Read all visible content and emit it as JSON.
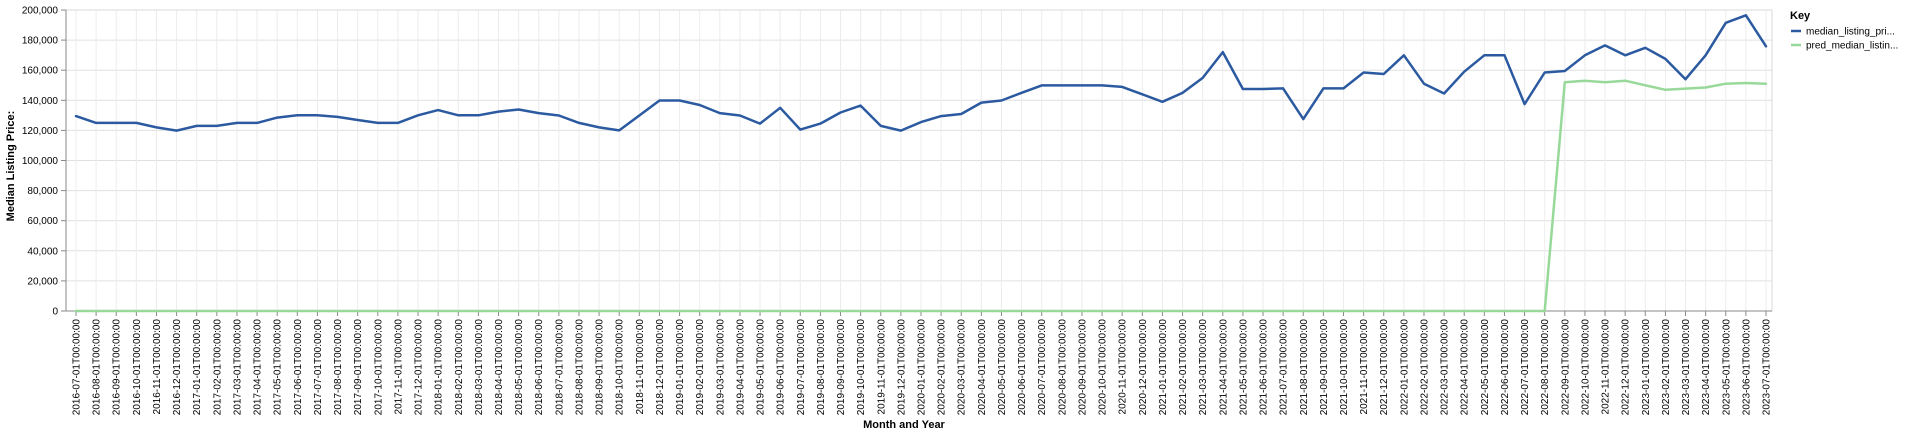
{
  "chart_data": {
    "type": "line",
    "xlabel": "Month and Year",
    "ylabel": "Median Listing Price:",
    "ylim": [
      0,
      200000
    ],
    "yticks": [
      "0",
      "20,000",
      "40,000",
      "60,000",
      "80,000",
      "100,000",
      "120,000",
      "140,000",
      "160,000",
      "180,000",
      "200,000"
    ],
    "grid": true,
    "legend": {
      "title": "Key",
      "placement": "right"
    },
    "x": [
      "2016-07-01T00:00:00",
      "2016-08-01T00:00:00",
      "2016-09-01T00:00:00",
      "2016-10-01T00:00:00",
      "2016-11-01T00:00:00",
      "2016-12-01T00:00:00",
      "2017-01-01T00:00:00",
      "2017-02-01T00:00:00",
      "2017-03-01T00:00:00",
      "2017-04-01T00:00:00",
      "2017-05-01T00:00:00",
      "2017-06-01T00:00:00",
      "2017-07-01T00:00:00",
      "2017-08-01T00:00:00",
      "2017-09-01T00:00:00",
      "2017-10-01T00:00:00",
      "2017-11-01T00:00:00",
      "2017-12-01T00:00:00",
      "2018-01-01T00:00:00",
      "2018-02-01T00:00:00",
      "2018-03-01T00:00:00",
      "2018-04-01T00:00:00",
      "2018-05-01T00:00:00",
      "2018-06-01T00:00:00",
      "2018-07-01T00:00:00",
      "2018-08-01T00:00:00",
      "2018-09-01T00:00:00",
      "2018-10-01T00:00:00",
      "2018-11-01T00:00:00",
      "2018-12-01T00:00:00",
      "2019-01-01T00:00:00",
      "2019-02-01T00:00:00",
      "2019-03-01T00:00:00",
      "2019-04-01T00:00:00",
      "2019-05-01T00:00:00",
      "2019-06-01T00:00:00",
      "2019-07-01T00:00:00",
      "2019-08-01T00:00:00",
      "2019-09-01T00:00:00",
      "2019-10-01T00:00:00",
      "2019-11-01T00:00:00",
      "2019-12-01T00:00:00",
      "2020-01-01T00:00:00",
      "2020-02-01T00:00:00",
      "2020-03-01T00:00:00",
      "2020-04-01T00:00:00",
      "2020-05-01T00:00:00",
      "2020-06-01T00:00:00",
      "2020-07-01T00:00:00",
      "2020-08-01T00:00:00",
      "2020-09-01T00:00:00",
      "2020-10-01T00:00:00",
      "2020-11-01T00:00:00",
      "2020-12-01T00:00:00",
      "2021-01-01T00:00:00",
      "2021-02-01T00:00:00",
      "2021-03-01T00:00:00",
      "2021-04-01T00:00:00",
      "2021-05-01T00:00:00",
      "2021-06-01T00:00:00",
      "2021-07-01T00:00:00",
      "2021-08-01T00:00:00",
      "2021-09-01T00:00:00",
      "2021-10-01T00:00:00",
      "2021-11-01T00:00:00",
      "2021-12-01T00:00:00",
      "2022-01-01T00:00:00",
      "2022-02-01T00:00:00",
      "2022-03-01T00:00:00",
      "2022-04-01T00:00:00",
      "2022-05-01T00:00:00",
      "2022-06-01T00:00:00",
      "2022-07-01T00:00:00",
      "2022-08-01T00:00:00",
      "2022-09-01T00:00:00",
      "2022-10-01T00:00:00",
      "2022-11-01T00:00:00",
      "2022-12-01T00:00:00",
      "2023-01-01T00:00:00",
      "2023-02-01T00:00:00",
      "2023-03-01T00:00:00",
      "2023-04-01T00:00:00",
      "2023-05-01T00:00:00",
      "2023-06-01T00:00:00",
      "2023-07-01T00:00:00"
    ],
    "series": [
      {
        "name": "median_listing_pri...",
        "color": "#2c5aa0",
        "values": [
          129500,
          125000,
          125000,
          125000,
          122000,
          119900,
          123000,
          123000,
          125000,
          125000,
          128500,
          130000,
          130000,
          129000,
          126900,
          125000,
          125000,
          130000,
          133500,
          130000,
          130000,
          132500,
          133900,
          131500,
          129900,
          125000,
          122000,
          120000,
          129900,
          139900,
          139900,
          136900,
          131500,
          129900,
          124500,
          135000,
          120500,
          124500,
          131900,
          136500,
          123000,
          119900,
          125500,
          129500,
          130900,
          138500,
          139900,
          145000,
          149900,
          149900,
          149900,
          149900,
          148900,
          144000,
          139000,
          144900,
          154900,
          172000,
          147500,
          147500,
          147900,
          127500,
          147900,
          147900,
          158500,
          157500,
          169900,
          151000,
          144500,
          159000,
          169900,
          169900,
          137500,
          158500,
          159500,
          169900,
          176500,
          169900,
          174900,
          167500,
          154000,
          169900,
          191500,
          196500,
          175900
        ]
      },
      {
        "name": "pred_median_listin...",
        "color": "#98d99a",
        "values": [
          0,
          0,
          0,
          0,
          0,
          0,
          0,
          0,
          0,
          0,
          0,
          0,
          0,
          0,
          0,
          0,
          0,
          0,
          0,
          0,
          0,
          0,
          0,
          0,
          0,
          0,
          0,
          0,
          0,
          0,
          0,
          0,
          0,
          0,
          0,
          0,
          0,
          0,
          0,
          0,
          0,
          0,
          0,
          0,
          0,
          0,
          0,
          0,
          0,
          0,
          0,
          0,
          0,
          0,
          0,
          0,
          0,
          0,
          0,
          0,
          0,
          0,
          0,
          0,
          0,
          0,
          0,
          0,
          0,
          0,
          0,
          0,
          0,
          0,
          152000,
          153000,
          152000,
          153000,
          150000,
          147000,
          147800,
          148500,
          151000,
          151500,
          151000
        ]
      }
    ]
  }
}
